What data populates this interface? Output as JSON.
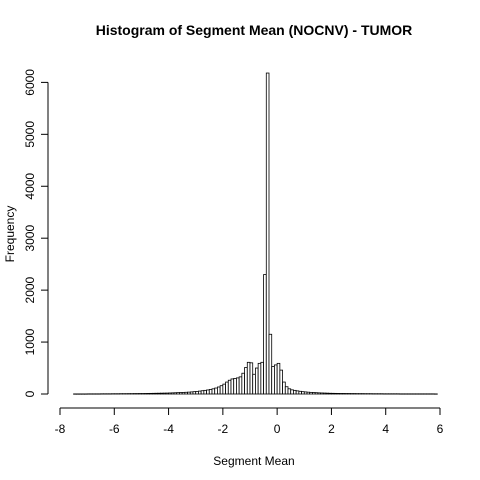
{
  "chart_data": {
    "type": "bar",
    "title": "Histogram of Segment Mean (NOCNV) - TUMOR",
    "xlabel": "Segment Mean",
    "ylabel": "Frequency",
    "xlim": [
      -8,
      6
    ],
    "ylim": [
      0,
      6200
    ],
    "x_ticks": [
      -8,
      -6,
      -4,
      -2,
      0,
      2,
      4,
      6
    ],
    "y_ticks": [
      0,
      1000,
      2000,
      3000,
      4000,
      5000,
      6000
    ],
    "bin_width": 0.1,
    "bin_start": -7.5,
    "values": [
      2,
      2,
      2,
      2,
      2,
      3,
      3,
      3,
      3,
      3,
      4,
      4,
      4,
      4,
      5,
      5,
      5,
      6,
      6,
      6,
      7,
      7,
      8,
      8,
      9,
      9,
      10,
      11,
      12,
      13,
      14,
      15,
      16,
      17,
      18,
      20,
      22,
      24,
      26,
      28,
      30,
      33,
      36,
      40,
      45,
      50,
      56,
      63,
      70,
      78,
      88,
      100,
      115,
      135,
      160,
      190,
      230,
      265,
      290,
      300,
      310,
      330,
      400,
      510,
      610,
      600,
      380,
      500,
      590,
      610,
      2300,
      6180,
      1150,
      530,
      560,
      590,
      460,
      230,
      140,
      100,
      80,
      70,
      60,
      52,
      45,
      40,
      35,
      31,
      28,
      25,
      22,
      20,
      18,
      16,
      14,
      13,
      12,
      11,
      10,
      10,
      9,
      9,
      8,
      8,
      7,
      7,
      7,
      6,
      6,
      6,
      5,
      5,
      5,
      5,
      4,
      4,
      4,
      4,
      4,
      4,
      3,
      3,
      3,
      3,
      3,
      3,
      3,
      3,
      3,
      3,
      3,
      3,
      3,
      2
    ]
  }
}
